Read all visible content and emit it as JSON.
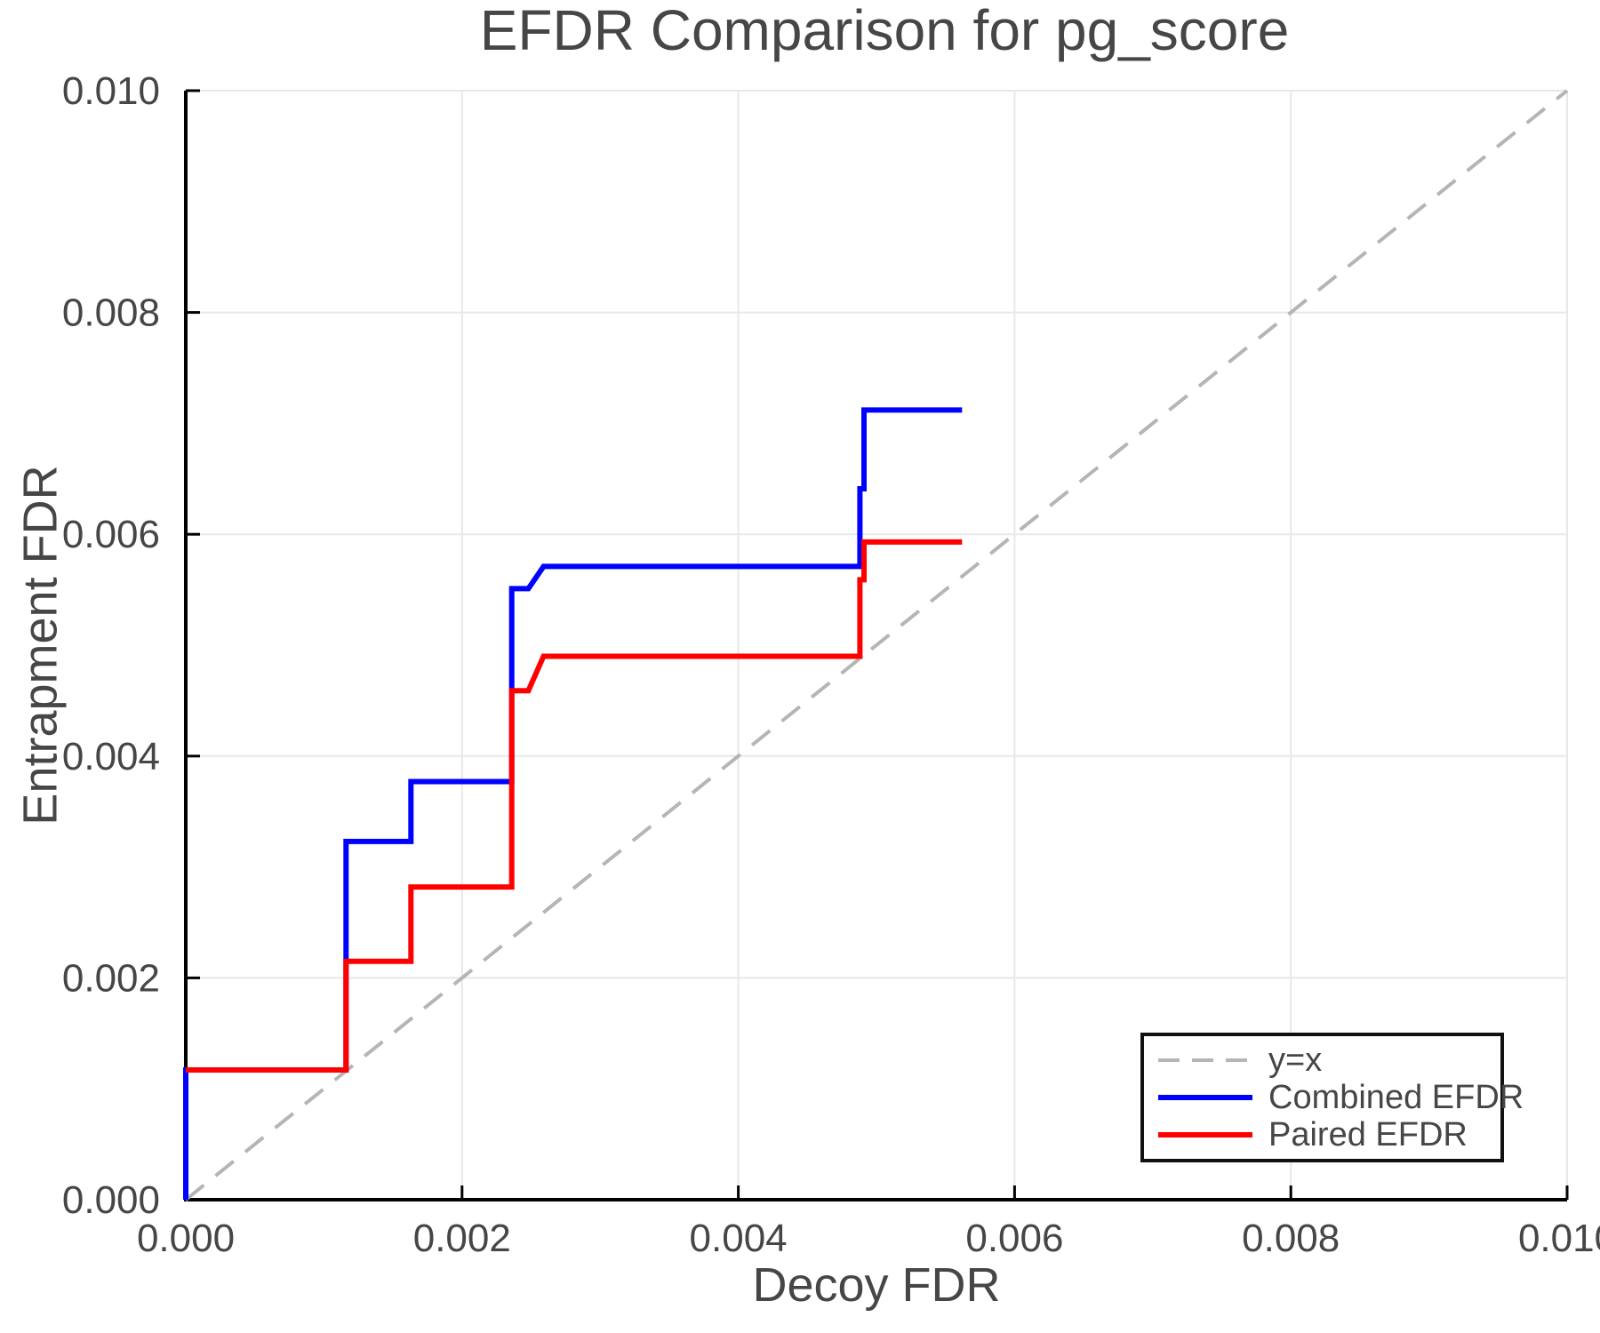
{
  "chart_data": {
    "type": "line",
    "title": "EFDR Comparison for pg_score",
    "xlabel": "Decoy FDR",
    "ylabel": "Entrapment FDR",
    "xlim": [
      0,
      0.01
    ],
    "ylim": [
      0,
      0.01
    ],
    "grid": true,
    "legend_position": "lower-right",
    "x_ticks": [
      0,
      0.002,
      0.004,
      0.006,
      0.008,
      0.01
    ],
    "x_tick_labels": [
      "0.000",
      "0.002",
      "0.004",
      "0.006",
      "0.008",
      "0.010"
    ],
    "y_ticks": [
      0,
      0.002,
      0.004,
      0.006,
      0.008,
      0.01
    ],
    "y_tick_labels": [
      "0.000",
      "0.002",
      "0.004",
      "0.006",
      "0.008",
      "0.010"
    ],
    "colors": {
      "axis": "#000000",
      "grid": "#e8e8e8",
      "text": "#464646",
      "identity_line": "#b5b5b5",
      "combined": "#0000ff",
      "paired": "#ff0000"
    },
    "series": [
      {
        "name": "y=x",
        "color": "#b5b5b5",
        "style": "dashed",
        "points": [
          [
            0,
            0
          ],
          [
            0.01,
            0.01
          ]
        ]
      },
      {
        "name": "Combined EFDR",
        "color": "#0000ff",
        "style": "solid",
        "points": [
          [
            0,
            0
          ],
          [
            0,
            0.00117
          ],
          [
            0.00116,
            0.00117
          ],
          [
            0.00116,
            0.00323
          ],
          [
            0.00163,
            0.00323
          ],
          [
            0.00163,
            0.00377
          ],
          [
            0.00236,
            0.00377
          ],
          [
            0.00236,
            0.00551
          ],
          [
            0.00248,
            0.00551
          ],
          [
            0.00259,
            0.00571
          ],
          [
            0.00488,
            0.00571
          ],
          [
            0.00488,
            0.00641
          ],
          [
            0.00491,
            0.00641
          ],
          [
            0.00491,
            0.00712
          ],
          [
            0.00562,
            0.00712
          ]
        ]
      },
      {
        "name": "Paired EFDR",
        "color": "#ff0000",
        "style": "solid",
        "points": [
          [
            0,
            0.00117
          ],
          [
            0.00116,
            0.00117
          ],
          [
            0.00116,
            0.00215
          ],
          [
            0.00163,
            0.00215
          ],
          [
            0.00163,
            0.00282
          ],
          [
            0.00236,
            0.00282
          ],
          [
            0.00236,
            0.00459
          ],
          [
            0.00248,
            0.00459
          ],
          [
            0.00259,
            0.0049
          ],
          [
            0.00488,
            0.0049
          ],
          [
            0.00488,
            0.00559
          ],
          [
            0.00491,
            0.00559
          ],
          [
            0.00491,
            0.00593
          ],
          [
            0.00562,
            0.00593
          ]
        ]
      }
    ]
  }
}
